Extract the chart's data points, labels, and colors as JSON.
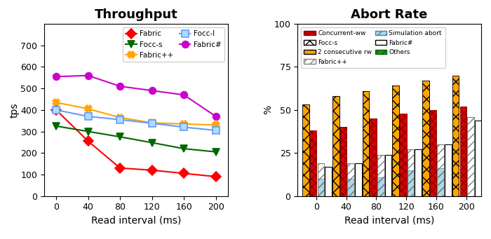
{
  "throughput": {
    "x": [
      0,
      40,
      80,
      120,
      160,
      200
    ],
    "Fabric": [
      400,
      255,
      130,
      120,
      105,
      90
    ],
    "Fabric++": [
      435,
      405,
      365,
      340,
      335,
      330
    ],
    "Fabric#": [
      555,
      560,
      510,
      490,
      470,
      370
    ],
    "Focc-s": [
      325,
      300,
      275,
      248,
      220,
      205
    ],
    "Focc-l": [
      400,
      370,
      355,
      338,
      320,
      305
    ],
    "series_order": [
      "Fabric",
      "Fabric++",
      "Fabric#",
      "Focc-s",
      "Focc-l"
    ],
    "colors": {
      "Fabric": "#ff0000",
      "Fabric++": "#ffa500",
      "Fabric#": "#cc00cc",
      "Focc-s": "#006600",
      "Focc-l": "#6699ff"
    },
    "markerfacecolors": {
      "Fabric": "#ff0000",
      "Fabric++": "#ffa500",
      "Fabric#": "#cc00cc",
      "Focc-s": "#006600",
      "Focc-l": "#aaddff"
    },
    "markeredgecolors": {
      "Fabric": "#ff0000",
      "Fabric++": "#ffa500",
      "Fabric#": "#cc00cc",
      "Focc-s": "#006600",
      "Focc-l": "#6699ff"
    },
    "markers": {
      "Fabric": "D",
      "Fabric++": "X",
      "Fabric#": "o",
      "Focc-s": "v",
      "Focc-l": "s"
    },
    "title": "Throughput",
    "xlabel": "Read interval (ms)",
    "ylabel": "tps",
    "ylim": [
      0,
      800
    ],
    "yticks": [
      0,
      100,
      200,
      300,
      400,
      500,
      600,
      700
    ],
    "legend_order": [
      0,
      3,
      1,
      4,
      2
    ]
  },
  "abort": {
    "x": [
      0,
      40,
      80,
      120,
      160,
      200
    ],
    "focc_s": [
      53,
      58,
      61,
      64,
      67,
      70
    ],
    "two_consec": [
      53,
      58,
      61,
      64,
      67,
      70
    ],
    "conc_ww": [
      38,
      40,
      45,
      48,
      50,
      52
    ],
    "others": [
      35,
      40,
      45,
      47,
      50,
      52
    ],
    "sim_abort": [
      10,
      10,
      11,
      15,
      16,
      0
    ],
    "fabric_pp": [
      19,
      19,
      24,
      27,
      30,
      46
    ],
    "fabric_hash": [
      17,
      19,
      24,
      27,
      30,
      44
    ],
    "title": "Abort Rate",
    "xlabel": "Read interval (ms)",
    "ylabel": "%",
    "ylim": [
      0,
      100
    ],
    "yticks": [
      0,
      25,
      50,
      75,
      100
    ]
  }
}
